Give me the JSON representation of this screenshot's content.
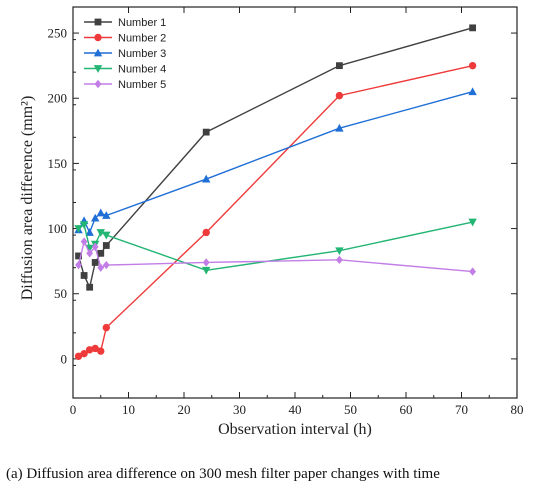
{
  "chart_data": {
    "type": "line",
    "xlabel": "Observation interval (h)",
    "ylabel": "Diffusion area difference (mm²)",
    "xlim": [
      0,
      80
    ],
    "ylim": [
      -30,
      270
    ],
    "xticks": [
      0,
      10,
      20,
      30,
      40,
      50,
      60,
      70,
      80
    ],
    "yticks": [
      0,
      50,
      100,
      150,
      200,
      250
    ],
    "grid": false,
    "legend_position": "top-left",
    "series": [
      {
        "name": "Number 1",
        "color": "#404040",
        "marker": "square",
        "x": [
          1,
          2,
          3,
          4,
          5,
          6,
          24,
          48,
          72
        ],
        "y": [
          79,
          64,
          55,
          74,
          81,
          87,
          174,
          225,
          254
        ]
      },
      {
        "name": "Number 2",
        "color": "#ee3a3a",
        "marker": "circle",
        "x": [
          1,
          2,
          3,
          4,
          5,
          6,
          24,
          48,
          72
        ],
        "y": [
          2,
          4,
          7,
          8,
          6,
          24,
          97,
          202,
          225
        ]
      },
      {
        "name": "Number 3",
        "color": "#1f6fd6",
        "marker": "triangle-up",
        "x": [
          1,
          2,
          3,
          4,
          5,
          6,
          24,
          48,
          72
        ],
        "y": [
          99,
          106,
          97,
          108,
          112,
          110,
          138,
          177,
          205
        ]
      },
      {
        "name": "Number 4",
        "color": "#22b573",
        "marker": "triangle-down",
        "x": [
          1,
          2,
          3,
          4,
          5,
          6,
          24,
          48,
          72
        ],
        "y": [
          100,
          103,
          85,
          88,
          97,
          95,
          68,
          83,
          105
        ]
      },
      {
        "name": "Number 5",
        "color": "#c27ee6",
        "marker": "diamond",
        "x": [
          1,
          2,
          3,
          4,
          5,
          6,
          24,
          48,
          72
        ],
        "y": [
          72,
          90,
          81,
          86,
          70,
          72,
          74,
          76,
          67
        ]
      }
    ]
  },
  "caption": {
    "label": "(a)",
    "text": "Diffusion area difference on 300 mesh filter paper changes with time"
  }
}
